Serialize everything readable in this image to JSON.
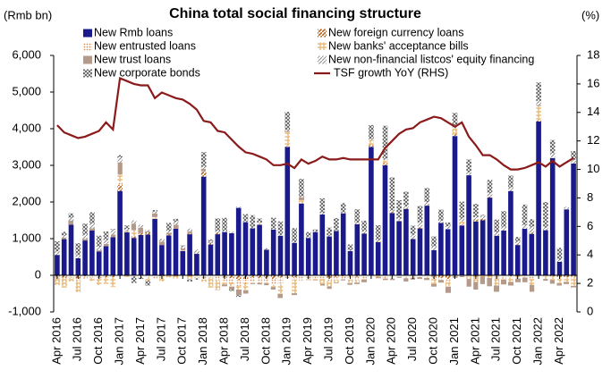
{
  "chart_data": {
    "type": "bar",
    "title": "China total social financing structure",
    "y_axis_label": "(Rmb bn)",
    "y2_axis_label": "(%)",
    "categories": [
      "Apr 2016",
      null,
      null,
      "Jul 2016",
      null,
      null,
      "Oct 2016",
      null,
      null,
      "Jan 2017",
      null,
      null,
      "Apr 2017",
      null,
      null,
      "Jul 2017",
      null,
      null,
      "Oct 2017",
      null,
      null,
      "Jan 2018",
      null,
      null,
      "Apr 2018",
      null,
      null,
      "Jul 2018",
      null,
      null,
      "Oct 2018",
      null,
      null,
      "Jan 2019",
      null,
      null,
      "Apr 2019",
      null,
      null,
      "Jul 2019",
      null,
      null,
      "Oct 2019",
      null,
      null,
      "Jan 2020",
      null,
      null,
      "Apr 2020",
      null,
      null,
      "Jul 2020",
      null,
      null,
      "Oct 2020",
      null,
      null,
      "Jan 2021",
      null,
      null,
      "Apr 2021",
      null,
      null,
      "Jul 2021",
      null,
      null,
      "Oct 2021",
      null,
      null,
      "Jan 2022",
      null,
      null,
      "Apr 2022",
      null,
      null
    ],
    "ylim": [
      -1000,
      6000
    ],
    "yticks": [
      {
        "value": -1000,
        "label": "-1,000"
      },
      0,
      {
        "value": 1000,
        "label": "1,000"
      },
      {
        "value": 2000,
        "label": "2,000"
      },
      {
        "value": 3000,
        "label": "3,000"
      },
      {
        "value": 4000,
        "label": "4,000"
      },
      {
        "value": 5000,
        "label": "5,000"
      },
      {
        "value": 6000,
        "label": "6,000"
      }
    ],
    "y2lim": [
      0,
      18
    ],
    "y2ticks": [
      0,
      2,
      4,
      6,
      8,
      10,
      12,
      14,
      16,
      18
    ],
    "stacked": true,
    "series": [
      {
        "name": "New Rmb loans",
        "color": "#1a1a8c",
        "values": [
          556,
          986,
          1380,
          464,
          949,
          1220,
          651,
          795,
          1040,
          2300,
          1170,
          1020,
          1100,
          1110,
          1540,
          826,
          1090,
          1270,
          664,
          1120,
          584,
          2690,
          839,
          1120,
          1180,
          1150,
          1840,
          1450,
          1280,
          1380,
          697,
          1250,
          1080,
          3500,
          886,
          1960,
          1020,
          1180,
          1660,
          1060,
          1210,
          1690,
          661,
          1390,
          1140,
          3500,
          905,
          3000,
          1700,
          1480,
          1810,
          992,
          1280,
          1900,
          689,
          1430,
          1260,
          3800,
          1360,
          2730,
          1470,
          1500,
          2120,
          1080,
          1220,
          2300,
          826,
          1270,
          1130,
          4200,
          1230,
          3200,
          370,
          1800,
          3050
        ]
      },
      {
        "name": "New foreign currency loans",
        "color": "#b8641e",
        "values": [
          -40,
          -60,
          -20,
          -90,
          -30,
          -20,
          -40,
          -50,
          -50,
          170,
          -20,
          40,
          50,
          60,
          -10,
          -30,
          20,
          0,
          -10,
          20,
          0,
          150,
          40,
          50,
          -60,
          -80,
          -130,
          -100,
          -50,
          -80,
          -80,
          -100,
          -50,
          30,
          -50,
          -10,
          -20,
          -10,
          -20,
          -70,
          -40,
          -30,
          -40,
          -40,
          20,
          50,
          10,
          60,
          30,
          -10,
          20,
          -20,
          30,
          10,
          -40,
          -70,
          -100,
          50,
          20,
          -20,
          40,
          40,
          30,
          -10,
          -20,
          -30,
          20,
          -20,
          40,
          20,
          -20,
          -30,
          -50,
          -50,
          -40
        ]
      },
      {
        "name": "New entrusted loans",
        "color": "#d4925a",
        "values": [
          -30,
          -20,
          -50,
          -40,
          -30,
          -40,
          -70,
          -20,
          0,
          80,
          20,
          -30,
          -40,
          -50,
          -90,
          -40,
          -20,
          -10,
          -20,
          -10,
          -50,
          -120,
          -60,
          -140,
          -130,
          -130,
          -160,
          -120,
          -140,
          -130,
          -100,
          -160,
          -200,
          -70,
          -70,
          -130,
          -80,
          -90,
          -90,
          -90,
          -90,
          -80,
          -80,
          -90,
          -100,
          -30,
          -20,
          -90,
          -50,
          -30,
          -40,
          -40,
          -50,
          -40,
          -40,
          -60,
          -70,
          -20,
          -20,
          -10,
          -10,
          -20,
          -10,
          -20,
          -20,
          -20,
          -10,
          -20,
          -100,
          -20,
          -10,
          10,
          0,
          10,
          0
        ]
      },
      {
        "name": "New banks' acceptance bills",
        "color": "#e09a3a",
        "values": [
          -200,
          -250,
          -100,
          -330,
          -40,
          -100,
          -160,
          -160,
          -270,
          200,
          -20,
          170,
          -20,
          -100,
          50,
          -100,
          -40,
          -80,
          20,
          -100,
          -30,
          -60,
          -270,
          -250,
          -60,
          -100,
          -100,
          -190,
          -20,
          50,
          -30,
          -60,
          -260,
          380,
          -370,
          90,
          -20,
          -30,
          -130,
          -140,
          -70,
          0,
          -90,
          -70,
          -20,
          140,
          -30,
          80,
          -40,
          30,
          -40,
          -10,
          20,
          -30,
          -160,
          0,
          -140,
          160,
          90,
          -70,
          -170,
          -20,
          -60,
          -250,
          -80,
          -130,
          -80,
          -20,
          -160,
          400,
          -70,
          -100,
          -170,
          -130,
          -250
        ]
      },
      {
        "name": "New trust loans",
        "color": "#6b3514",
        "values": [
          0,
          40,
          110,
          0,
          40,
          60,
          30,
          60,
          70,
          330,
          20,
          180,
          150,
          30,
          100,
          90,
          50,
          110,
          50,
          60,
          10,
          70,
          20,
          -10,
          -50,
          -80,
          -150,
          -90,
          -30,
          -40,
          -60,
          -70,
          -110,
          30,
          -50,
          80,
          -10,
          -10,
          -40,
          -70,
          -20,
          -30,
          -50,
          -40,
          -70,
          0,
          -30,
          -40,
          -40,
          -30,
          -90,
          -50,
          -50,
          -60,
          -70,
          -70,
          -170,
          -50,
          -30,
          -210,
          -210,
          -200,
          -230,
          -170,
          -130,
          -100,
          -100,
          -130,
          -190,
          30,
          -50,
          -100,
          -60,
          -60,
          -40
        ]
      },
      {
        "name": "New non-financial listcos' equity financing",
        "color": "#8c8c8c",
        "values": [
          100,
          60,
          80,
          90,
          120,
          130,
          100,
          110,
          130,
          140,
          50,
          90,
          80,
          40,
          50,
          50,
          60,
          80,
          50,
          80,
          110,
          50,
          40,
          50,
          40,
          40,
          30,
          20,
          20,
          10,
          20,
          20,
          20,
          30,
          20,
          20,
          30,
          20,
          40,
          20,
          20,
          30,
          20,
          50,
          50,
          30,
          50,
          40,
          40,
          40,
          50,
          110,
          120,
          90,
          100,
          60,
          80,
          90,
          80,
          80,
          80,
          90,
          90,
          90,
          110,
          100,
          80,
          100,
          150,
          110,
          70,
          120,
          50,
          60,
          100
        ]
      },
      {
        "name": "New corporate bonds",
        "color": "#555555",
        "values": [
          270,
          100,
          120,
          320,
          300,
          310,
          300,
          230,
          20,
          60,
          100,
          -180,
          -40,
          -130,
          40,
          20,
          210,
          80,
          30,
          -60,
          -40,
          400,
          40,
          330,
          350,
          -40,
          -50,
          200,
          340,
          110,
          20,
          300,
          370,
          490,
          380,
          480,
          130,
          50,
          400,
          220,
          330,
          250,
          160,
          360,
          280,
          380,
          400,
          900,
          900,
          500,
          400,
          250,
          440,
          380,
          270,
          300,
          100,
          330,
          460,
          350,
          360,
          20,
          360,
          350,
          420,
          320,
          120,
          560,
          210,
          500,
          700,
          360,
          330,
          0,
          240
        ]
      },
      {
        "name": "TSF growth YoY (RHS)",
        "color": "#8b1a1a",
        "type": "line",
        "axis": "y2",
        "values": [
          13.1,
          12.6,
          12.4,
          12.2,
          12.3,
          12.5,
          12.7,
          13.3,
          12.8,
          16.4,
          16.2,
          16.0,
          15.9,
          15.9,
          15.0,
          15.4,
          15.2,
          15.0,
          14.9,
          14.6,
          14.2,
          13.4,
          13.3,
          12.7,
          12.6,
          12.1,
          11.6,
          11.2,
          11.1,
          10.9,
          10.7,
          10.3,
          10.3,
          10.4,
          10.1,
          10.7,
          10.4,
          10.6,
          10.9,
          10.7,
          10.7,
          10.8,
          10.7,
          10.7,
          10.7,
          10.7,
          10.7,
          11.5,
          12.0,
          12.5,
          12.8,
          12.9,
          13.3,
          13.5,
          13.7,
          13.6,
          13.3,
          13.0,
          13.3,
          12.3,
          11.7,
          11.0,
          11.0,
          10.7,
          10.3,
          10.0,
          10.0,
          10.1,
          10.3,
          10.5,
          10.2,
          10.6,
          10.2,
          10.5,
          10.8
        ]
      }
    ]
  }
}
